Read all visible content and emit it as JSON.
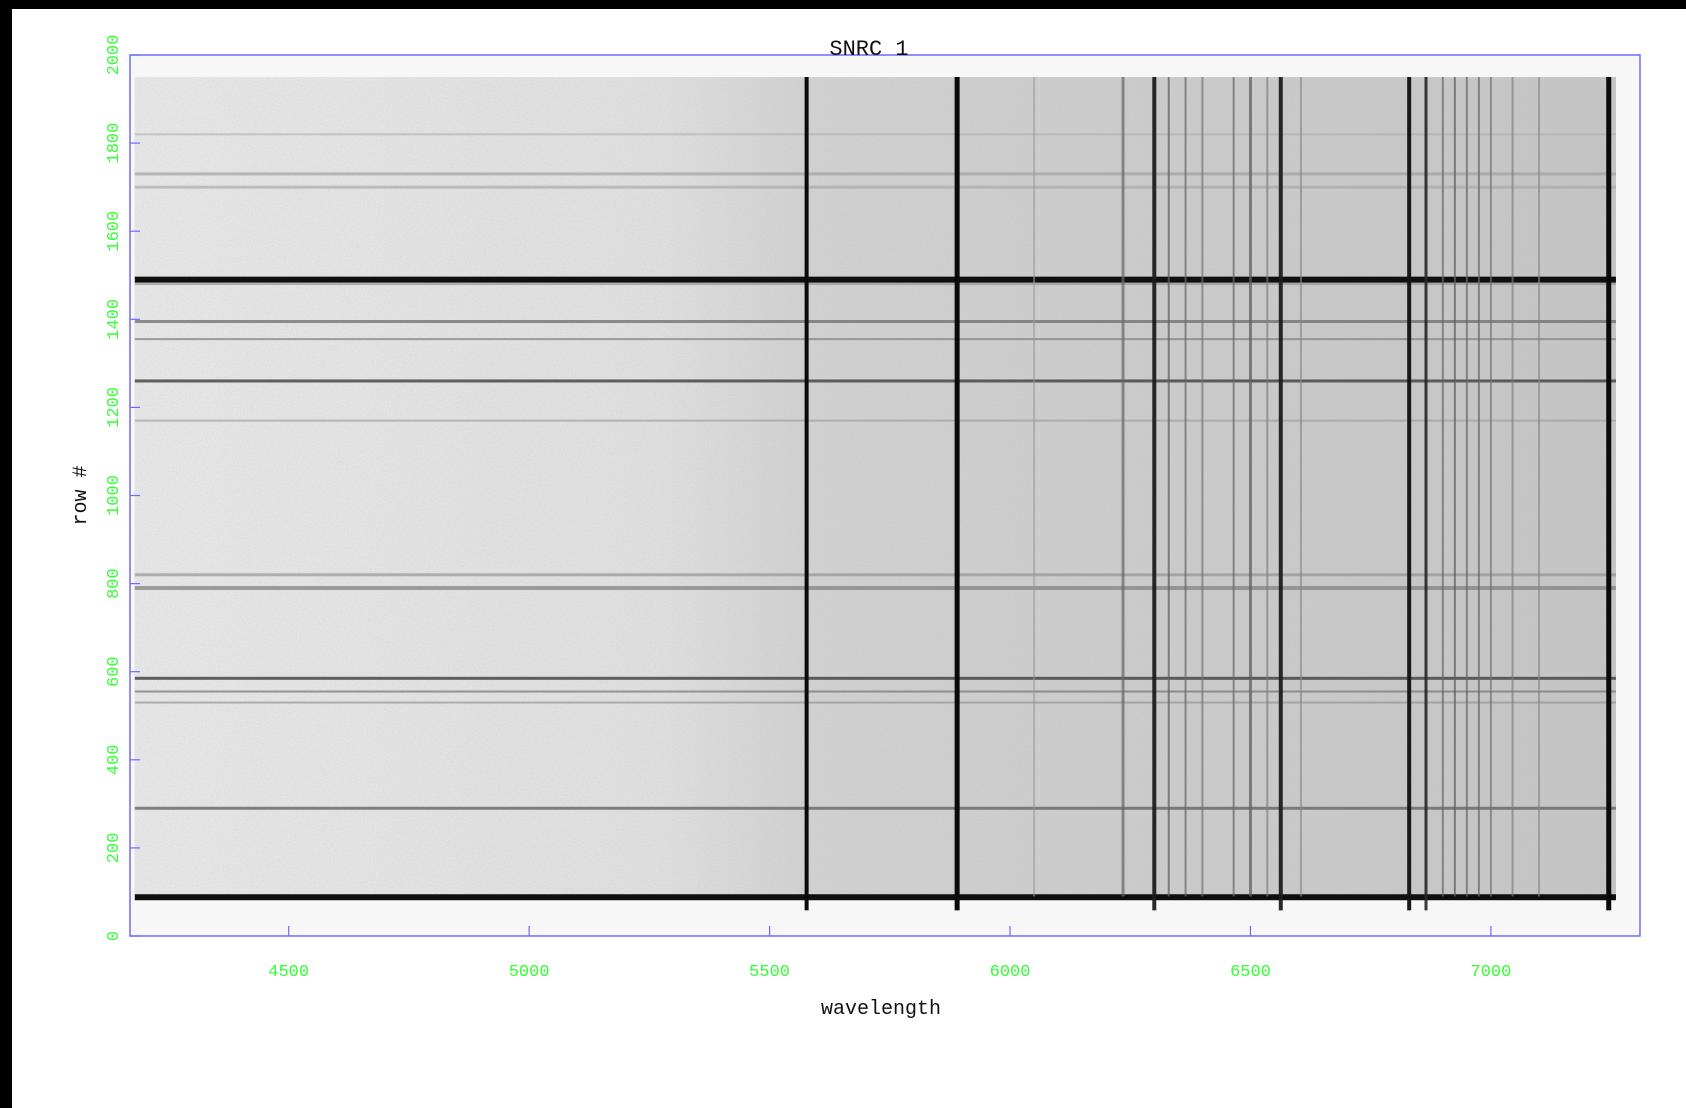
{
  "chart_data": {
    "type": "heatmap",
    "title": "SNRC 1",
    "xlabel": "wavelength",
    "ylabel": "row #",
    "xlim": [
      4170,
      7310
    ],
    "ylim": [
      0,
      2000
    ],
    "image_x_range": [
      4180,
      7260
    ],
    "image_y_range": [
      90,
      1950
    ],
    "x_ticks": [
      4500,
      5000,
      5500,
      6000,
      6500,
      7000
    ],
    "y_ticks": [
      0,
      200,
      400,
      600,
      800,
      1000,
      1200,
      1400,
      1600,
      1800,
      2000
    ],
    "colormap": "gray_inverted",
    "vertical_lines": [
      {
        "x": 5577,
        "strength": 1.0,
        "width": 4
      },
      {
        "x": 5890,
        "strength": 1.0,
        "width": 5
      },
      {
        "x": 6050,
        "strength": 0.25,
        "width": 2
      },
      {
        "x": 6235,
        "strength": 0.5,
        "width": 3
      },
      {
        "x": 6300,
        "strength": 0.9,
        "width": 4
      },
      {
        "x": 6330,
        "strength": 0.55,
        "width": 2
      },
      {
        "x": 6365,
        "strength": 0.5,
        "width": 2
      },
      {
        "x": 6400,
        "strength": 0.45,
        "width": 2
      },
      {
        "x": 6465,
        "strength": 0.5,
        "width": 2
      },
      {
        "x": 6500,
        "strength": 0.55,
        "width": 3
      },
      {
        "x": 6535,
        "strength": 0.4,
        "width": 2
      },
      {
        "x": 6563,
        "strength": 0.9,
        "width": 4
      },
      {
        "x": 6605,
        "strength": 0.35,
        "width": 2
      },
      {
        "x": 6830,
        "strength": 0.95,
        "width": 4
      },
      {
        "x": 6865,
        "strength": 0.85,
        "width": 3
      },
      {
        "x": 6900,
        "strength": 0.5,
        "width": 2
      },
      {
        "x": 6925,
        "strength": 0.55,
        "width": 2
      },
      {
        "x": 6950,
        "strength": 0.5,
        "width": 2
      },
      {
        "x": 6975,
        "strength": 0.5,
        "width": 2
      },
      {
        "x": 7000,
        "strength": 0.45,
        "width": 2
      },
      {
        "x": 7045,
        "strength": 0.4,
        "width": 2
      },
      {
        "x": 7100,
        "strength": 0.35,
        "width": 2
      },
      {
        "x": 7245,
        "strength": 1.0,
        "width": 5
      }
    ],
    "horizontal_lines": [
      {
        "y": 88,
        "strength": 1.0,
        "width": 6
      },
      {
        "y": 290,
        "strength": 0.55,
        "width": 3
      },
      {
        "y": 530,
        "strength": 0.3,
        "width": 2
      },
      {
        "y": 555,
        "strength": 0.45,
        "width": 2
      },
      {
        "y": 585,
        "strength": 0.7,
        "width": 3
      },
      {
        "y": 790,
        "strength": 0.4,
        "width": 4
      },
      {
        "y": 820,
        "strength": 0.3,
        "width": 3
      },
      {
        "y": 1170,
        "strength": 0.25,
        "width": 2
      },
      {
        "y": 1260,
        "strength": 0.7,
        "width": 3
      },
      {
        "y": 1355,
        "strength": 0.4,
        "width": 2
      },
      {
        "y": 1395,
        "strength": 0.5,
        "width": 3
      },
      {
        "y": 1480,
        "strength": 0.3,
        "width": 2
      },
      {
        "y": 1490,
        "strength": 1.0,
        "width": 6
      },
      {
        "y": 1700,
        "strength": 0.2,
        "width": 3
      },
      {
        "y": 1730,
        "strength": 0.25,
        "width": 3
      },
      {
        "y": 1820,
        "strength": 0.15,
        "width": 2
      }
    ]
  }
}
